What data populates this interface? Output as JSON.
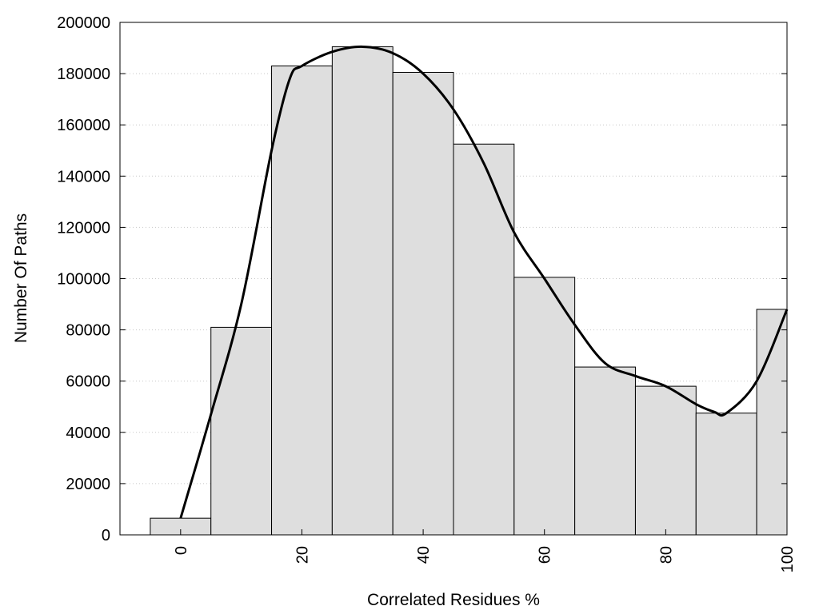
{
  "chart_data": {
    "type": "bar",
    "xlabel": "Correlated Residues %",
    "ylabel": "Number Of Paths",
    "x": [
      0,
      10,
      20,
      30,
      40,
      50,
      60,
      70,
      80,
      90,
      100
    ],
    "values": [
      6500,
      81000,
      183000,
      190500,
      180500,
      152500,
      100500,
      65500,
      58000,
      47500,
      88000
    ],
    "bin_width": 10,
    "xlim": [
      -10,
      100
    ],
    "ylim": [
      0,
      200000
    ],
    "xticks": [
      0,
      20,
      40,
      60,
      80,
      100
    ],
    "yticks": [
      0,
      20000,
      40000,
      60000,
      80000,
      100000,
      120000,
      140000,
      160000,
      180000,
      200000
    ],
    "grid": true,
    "smooth_curve": {
      "x": [
        0,
        5,
        10,
        15,
        18,
        20,
        25,
        30,
        35,
        40,
        45,
        50,
        55,
        60,
        65,
        70,
        75,
        80,
        85,
        88,
        90,
        95,
        100
      ],
      "y": [
        6500,
        47000,
        90000,
        150000,
        178000,
        183000,
        188500,
        190500,
        188000,
        180000,
        166000,
        145000,
        118000,
        100000,
        82000,
        67000,
        62000,
        58000,
        51000,
        48000,
        47500,
        60000,
        88000
      ]
    },
    "colors": {
      "bar_fill": "#dedede",
      "bar_stroke": "#000000",
      "curve": "#000000"
    }
  }
}
